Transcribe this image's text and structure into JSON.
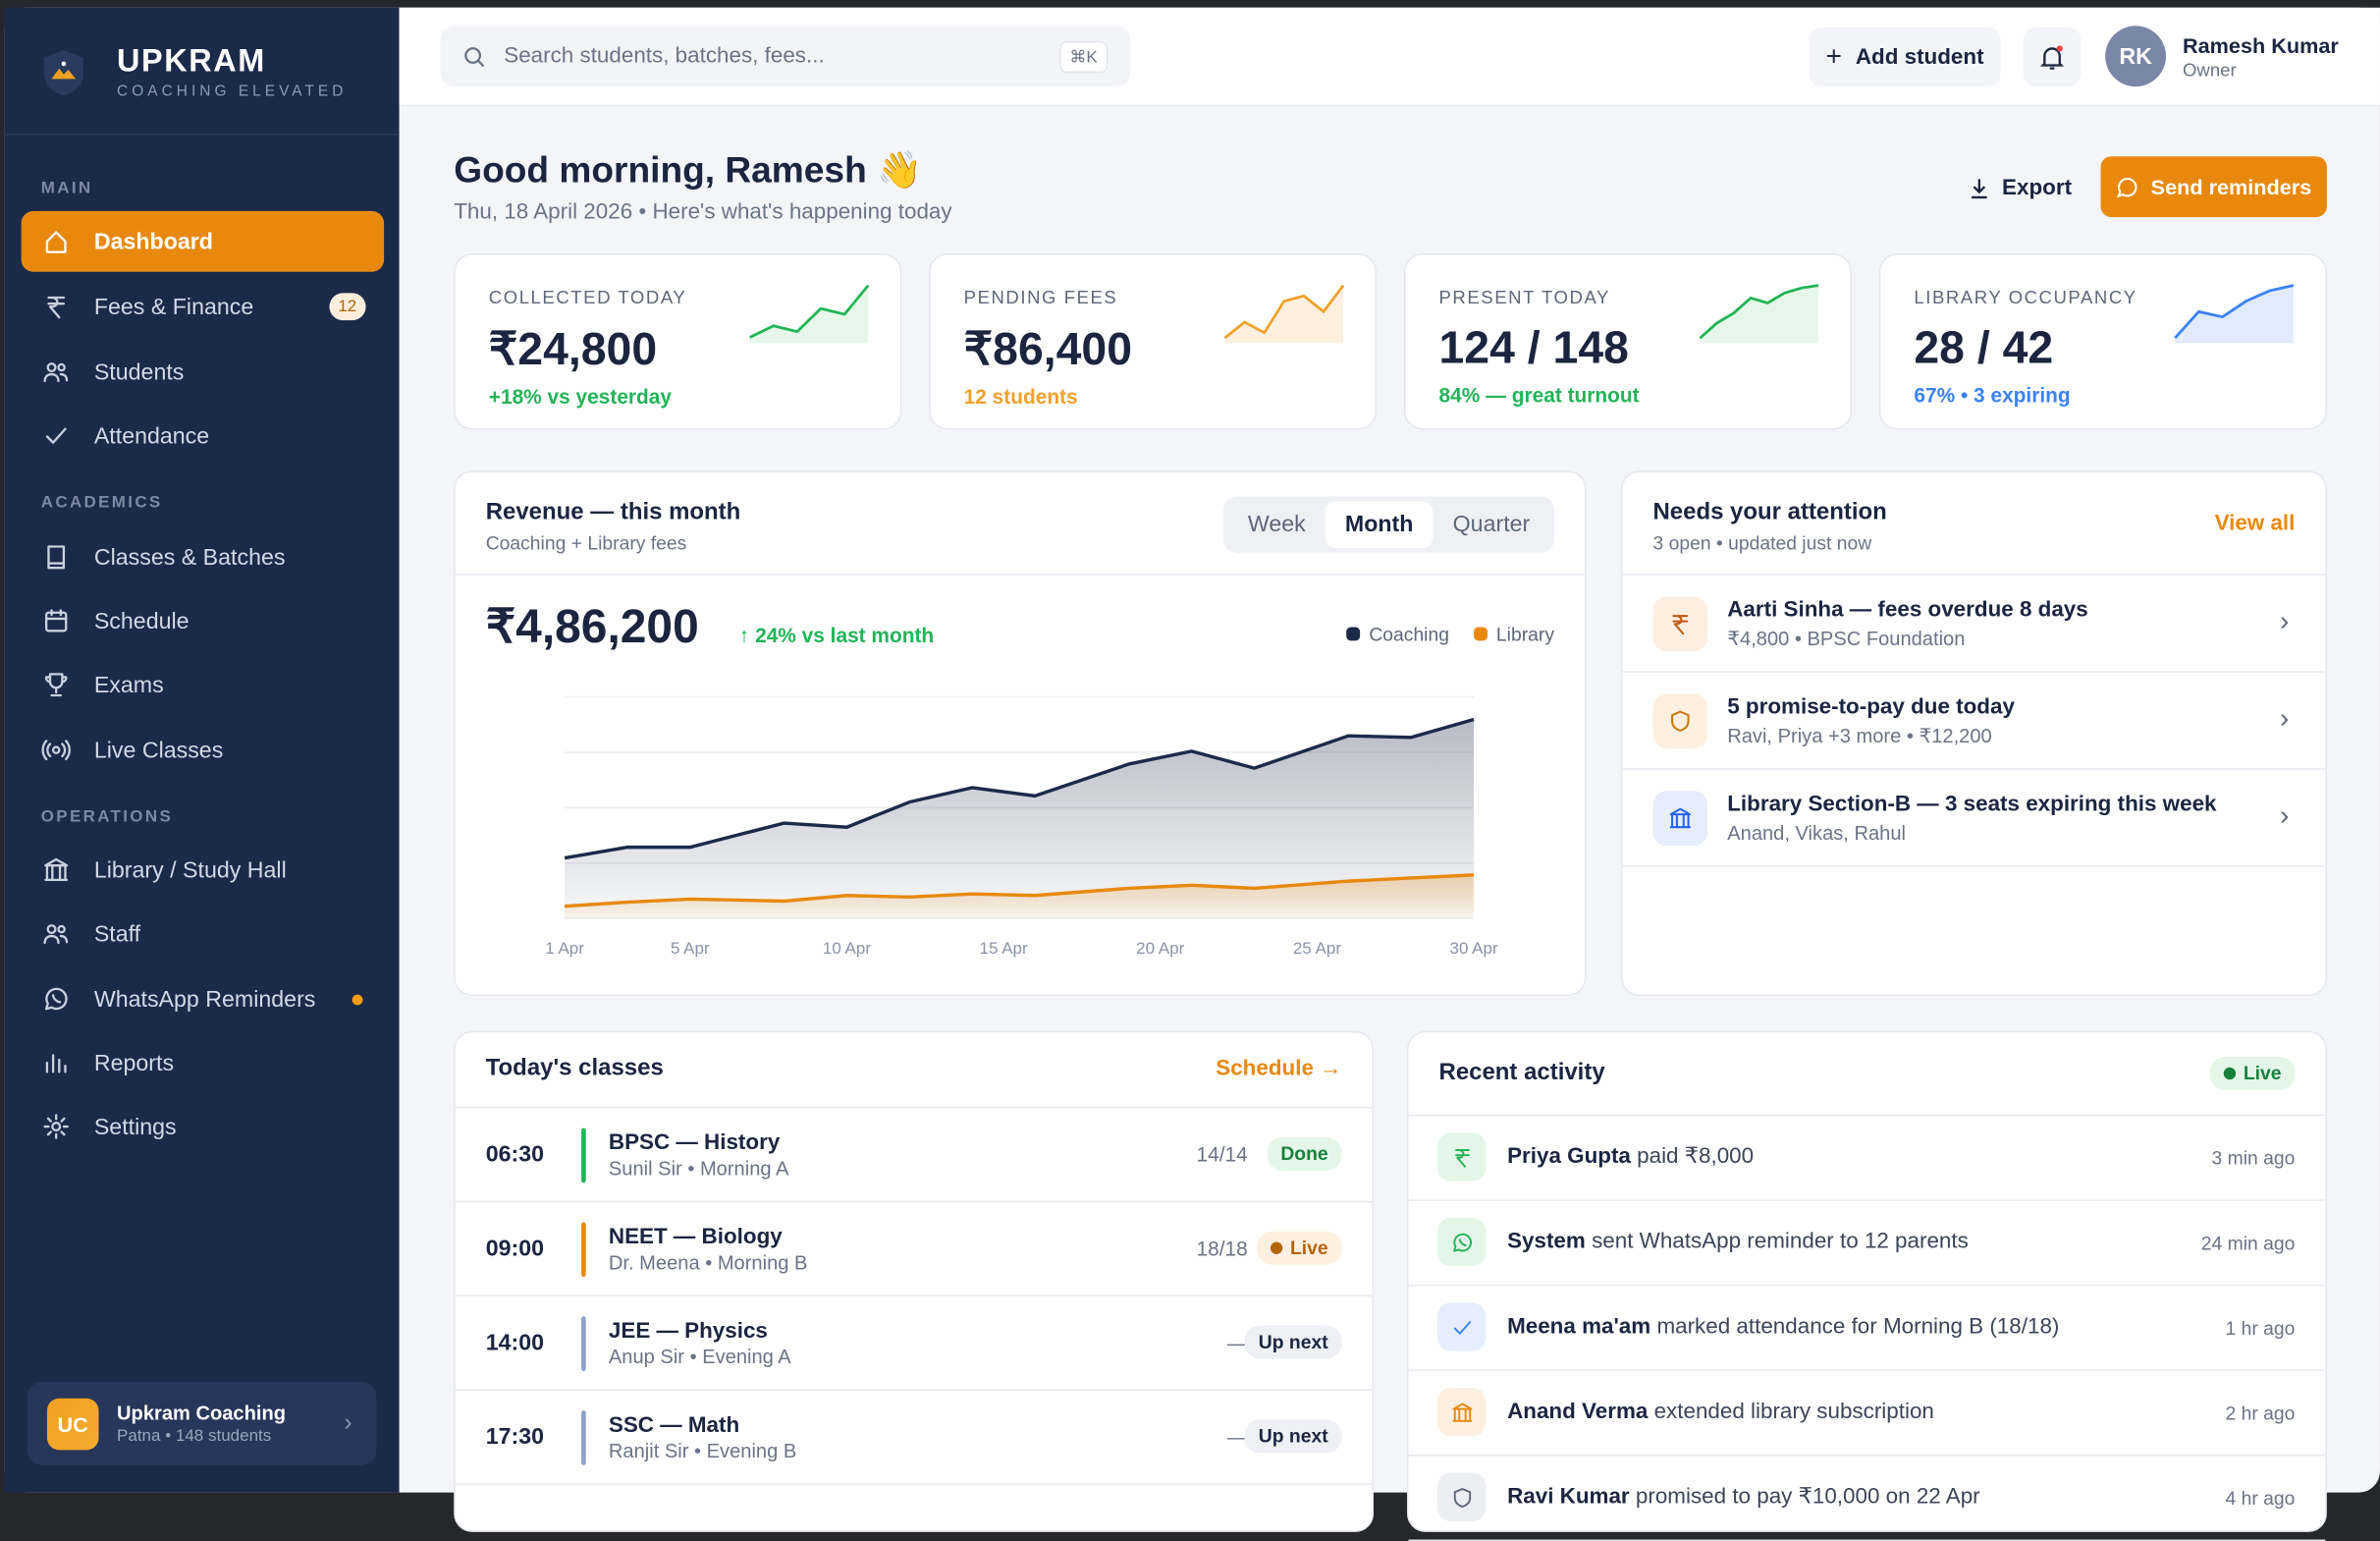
{
  "brand": {
    "name": "UPKRAM",
    "tagline": "COACHING ELEVATED"
  },
  "sidebar": {
    "sections": [
      "MAIN",
      "ACADEMICS",
      "OPERATIONS"
    ],
    "items": [
      {
        "label": "Dashboard",
        "icon": "home-icon",
        "active": true
      },
      {
        "label": "Fees & Finance",
        "icon": "rupee-icon",
        "badge": "12"
      },
      {
        "label": "Students",
        "icon": "users-icon"
      },
      {
        "label": "Attendance",
        "icon": "check-icon"
      },
      {
        "label": "Classes & Batches",
        "icon": "book-icon"
      },
      {
        "label": "Schedule",
        "icon": "calendar-icon"
      },
      {
        "label": "Exams",
        "icon": "trophy-icon"
      },
      {
        "label": "Live Classes",
        "icon": "broadcast-icon"
      },
      {
        "label": "Library / Study Hall",
        "icon": "library-icon"
      },
      {
        "label": "Staff",
        "icon": "users-icon"
      },
      {
        "label": "WhatsApp Reminders",
        "icon": "whatsapp-icon",
        "dot": true
      },
      {
        "label": "Reports",
        "icon": "bar-chart-icon"
      },
      {
        "label": "Settings",
        "icon": "gear-icon"
      }
    ],
    "org": {
      "initials": "UC",
      "name": "Upkram Coaching",
      "meta": "Patna • 148 students"
    }
  },
  "topbar": {
    "search_placeholder": "Search students, batches, fees...",
    "shortcut": "⌘K",
    "add_student": "Add student",
    "user": {
      "initials": "RK",
      "name": "Ramesh Kumar",
      "role": "Owner"
    }
  },
  "header": {
    "greeting": "Good morning, Ramesh 👋",
    "subtitle": "Thu, 18 April 2026 • Here's what's happening today",
    "export": "Export",
    "send_reminders": "Send reminders"
  },
  "colors": {
    "accent": "#e8890e",
    "navy": "#1c2a4a",
    "green": "#22b457",
    "blue": "#3b82f6",
    "orange": "#f5a524"
  },
  "kpis": [
    {
      "label": "COLLECTED TODAY",
      "value": "₹24,800",
      "note": "+18% vs yesterday",
      "color": "#22b457",
      "fill": "#e6f7ea",
      "trend": [
        1,
        3,
        2,
        6,
        5,
        10
      ]
    },
    {
      "label": "PENDING FEES",
      "value": "₹86,400",
      "note": "12 students",
      "color": "#f0a12a",
      "fill": "#fdf0e0",
      "trend": [
        1,
        4,
        2,
        8,
        9,
        6,
        11
      ]
    },
    {
      "label": "PRESENT TODAY",
      "value": "124 / 148",
      "note": "84% — great turnout",
      "color": "#22b457",
      "fill": "#e6f7ea",
      "trend": [
        1,
        4,
        6,
        9,
        8,
        10,
        11,
        11.5
      ]
    },
    {
      "label": "LIBRARY OCCUPANCY",
      "value": "28 / 42",
      "note": "67% • 3 expiring",
      "color": "#3b82f6",
      "fill": "#e1ebfd",
      "trend": [
        1,
        6,
        5,
        8,
        10,
        11
      ]
    }
  ],
  "revenue": {
    "title": "Revenue — this month",
    "subtitle": "Coaching + Library fees",
    "periods": [
      "Week",
      "Month",
      "Quarter"
    ],
    "selected": "Month",
    "total": "₹4,86,200",
    "change": "↑ 24% vs last month"
  },
  "chart_data": {
    "type": "area",
    "title": "",
    "xlabel": "",
    "ylabel": "",
    "x": [
      "1 Apr",
      "3 Apr",
      "5 Apr",
      "8 Apr",
      "10 Apr",
      "12 Apr",
      "14 Apr",
      "16 Apr",
      "19 Apr",
      "21 Apr",
      "23 Apr",
      "26 Apr",
      "28 Apr",
      "30 Apr"
    ],
    "xticks": [
      "1 Apr",
      "5 Apr",
      "10 Apr",
      "15 Apr",
      "20 Apr",
      "25 Apr",
      "30 Apr"
    ],
    "series": [
      {
        "name": "Coaching",
        "color": "#1c2a4a",
        "values": [
          1.18,
          1.39,
          1.39,
          1.86,
          1.78,
          2.27,
          2.55,
          2.39,
          3.01,
          3.26,
          2.93,
          3.56,
          3.53,
          3.88
        ]
      },
      {
        "name": "Library",
        "color": "#e8890e",
        "values": [
          0.24,
          0.32,
          0.38,
          0.34,
          0.45,
          0.42,
          0.48,
          0.45,
          0.59,
          0.65,
          0.59,
          0.73,
          0.79,
          0.85
        ]
      }
    ],
    "ylim": [
      0,
      4.2
    ],
    "grid": true,
    "legend": "top-right"
  },
  "attention": {
    "title": "Needs your attention",
    "subtitle": "3 open • updated just now",
    "view_all": "View all",
    "items": [
      {
        "title": "Aarti Sinha — fees overdue 8 days",
        "meta": "₹4,800 • BPSC Foundation",
        "icon": "rupee-icon"
      },
      {
        "title": "5 promise-to-pay due today",
        "meta": "Ravi, Priya +3 more • ₹12,200",
        "icon": "shield-icon"
      },
      {
        "title": "Library Section-B — 3 seats expiring this week",
        "meta": "Anand, Vikas, Rahul",
        "icon": "library-icon"
      }
    ]
  },
  "classes": {
    "title": "Today's classes",
    "link": "Schedule →",
    "items": [
      {
        "time": "06:30",
        "name": "BPSC — History",
        "meta": "Sunil Sir • Morning A",
        "count": "14/14",
        "status": "Done",
        "bar": "#22b457"
      },
      {
        "time": "09:00",
        "name": "NEET — Biology",
        "meta": "Dr. Meena • Morning B",
        "count": "18/18",
        "status": "Live",
        "bar": "#e8890e"
      },
      {
        "time": "14:00",
        "name": "JEE — Physics",
        "meta": "Anup Sir • Evening A",
        "count": "—",
        "status": "Up next",
        "bar": "#8ea0c8"
      },
      {
        "time": "17:30",
        "name": "SSC — Math",
        "meta": "Ranjit Sir • Evening B",
        "count": "—",
        "status": "Up next",
        "bar": "#8ea0c8"
      }
    ]
  },
  "activity": {
    "title": "Recent activity",
    "live": "Live",
    "items": [
      {
        "actor": "Priya Gupta",
        "text": "paid ₹8,000",
        "time": "3 min ago",
        "icon": "rupee-icon"
      },
      {
        "actor": "System",
        "text": "sent WhatsApp reminder to 12 parents",
        "time": "24 min ago",
        "icon": "whatsapp-icon"
      },
      {
        "actor": "Meena ma'am",
        "text": "marked attendance for Morning B (18/18)",
        "time": "1 hr ago",
        "icon": "check-icon"
      },
      {
        "actor": "Anand Verma",
        "text": "extended library subscription",
        "time": "2 hr ago",
        "icon": "library-icon"
      },
      {
        "actor": "Ravi Kumar",
        "text": "promised to pay ₹10,000 on 22 Apr",
        "time": "4 hr ago",
        "icon": "shield-icon"
      }
    ]
  }
}
